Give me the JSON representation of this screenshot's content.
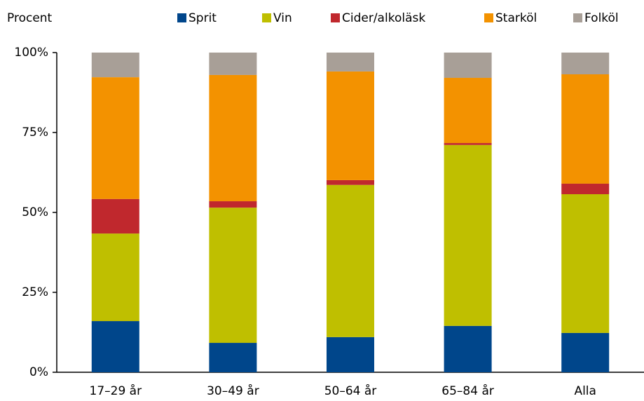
{
  "chart_data": {
    "type": "stacked_bar",
    "y_label": "Procent",
    "categories": [
      "17–29 år",
      "30–49 år",
      "50–64 år",
      "65–84 år",
      "Alla"
    ],
    "series": [
      {
        "name": "Sprit",
        "color": "#00468b",
        "values": [
          16.0,
          9.2,
          11.0,
          14.5,
          12.3
        ]
      },
      {
        "name": "Vin",
        "color": "#bfbf00",
        "values": [
          27.4,
          42.3,
          47.6,
          56.6,
          43.4
        ]
      },
      {
        "name": "Cider/alkoläsk",
        "color": "#c0282d",
        "values": [
          10.8,
          2.0,
          1.5,
          0.6,
          3.3
        ]
      },
      {
        "name": "Starköl",
        "color": "#f39200",
        "values": [
          38.1,
          39.5,
          34.0,
          20.4,
          34.2
        ]
      },
      {
        "name": "Folköl",
        "color": "#a89f97",
        "values": [
          7.7,
          7.0,
          5.9,
          7.9,
          6.8
        ]
      }
    ],
    "ylim": [
      0,
      100
    ],
    "yticks": [
      {
        "value": 0,
        "label": "0%"
      },
      {
        "value": 25,
        "label": "25%"
      },
      {
        "value": 50,
        "label": "50%"
      },
      {
        "value": 75,
        "label": "75%"
      },
      {
        "value": 100,
        "label": "100%"
      }
    ],
    "grid": false
  }
}
